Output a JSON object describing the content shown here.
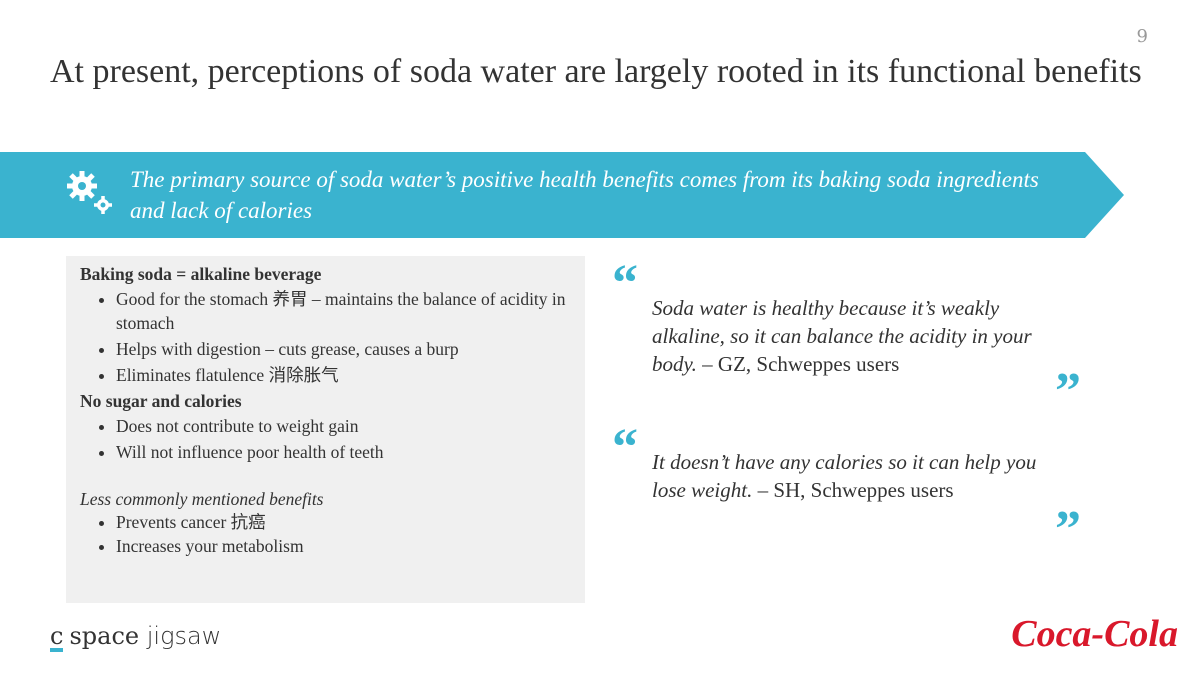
{
  "page_number": "9",
  "title": "At present, perceptions of soda water are largely rooted in its functional benefits",
  "banner": "The primary source of soda water’s positive health benefits comes from its baking soda ingredients and lack of calories",
  "benefits": {
    "sections": [
      {
        "heading": "Baking soda = alkaline beverage",
        "bullets": [
          "Good for the stomach 养胃 – maintains the balance of acidity in stomach",
          "Helps with digestion – cuts grease, causes a burp",
          "Eliminates flatulence 消除胀气"
        ]
      },
      {
        "heading": "No sugar and calories",
        "bullets": [
          "Does not contribute to weight gain",
          "Will not influence poor health of teeth"
        ]
      }
    ],
    "minor": {
      "heading": "Less commonly mentioned benefits",
      "bullets": [
        "Prevents cancer 抗癌",
        "Increases your metabolism"
      ]
    }
  },
  "quote_marks": {
    "open": "“",
    "close": "”"
  },
  "quotes": [
    {
      "text": "Soda water is healthy because it’s weakly alkaline, so it can balance the acidity in your body.",
      "attribution": "– GZ, Schweppes users"
    },
    {
      "text": "It doesn’t have any calories so it can help you lose weight.",
      "attribution": "– SH, Schweppes users"
    }
  ],
  "footer": {
    "logo_c": "c",
    "logo_space": "space",
    "logo_jigsaw": "jigsaw",
    "client": "Coca-Cola"
  }
}
